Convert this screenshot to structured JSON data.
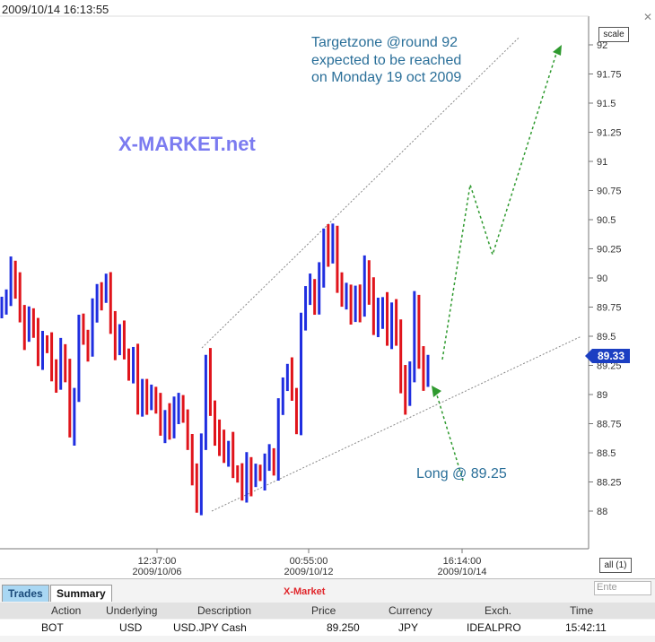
{
  "timestamp": "2009/10/14  16:13:55",
  "scale_label": "scale",
  "close_glyph": "✕",
  "current_price": "89.33",
  "brand": "X-MARKET.net",
  "target_note": "Targetzone @round 92\nexpected to be reached\non Monday 19 oct 2009",
  "long_note": "Long @ 89.25",
  "all_label": "all (1)",
  "colors": {
    "up_bar": "#1f2ee0",
    "down_bar": "#e0141b",
    "projection": "#2f9a2f",
    "channel": "#888888",
    "price_tag": "#1c3fc2"
  },
  "chart_data": {
    "type": "ohlc",
    "title": "",
    "ylim": [
      87.8,
      92.3
    ],
    "y_ticks": [
      "88",
      "88.25",
      "88.5",
      "88.75",
      "89",
      "89.25",
      "89.5",
      "89.75",
      "90",
      "90.25",
      "90.5",
      "90.75",
      "91",
      "91.25",
      "91.5",
      "91.75",
      "92"
    ],
    "x_ticks": [
      {
        "time": "12:37:00",
        "date": "2009/10/06"
      },
      {
        "time": "00:55:00",
        "date": "2009/10/12"
      },
      {
        "time": "16:14:00",
        "date": "2009/10/14"
      }
    ],
    "series": [
      {
        "values": [
          89.75,
          89.85,
          90.1,
          89.95,
          89.7,
          89.5,
          89.65,
          89.55,
          89.3,
          89.45,
          89.4,
          89.25,
          89.1,
          89.35,
          89.2,
          88.7,
          89.0,
          89.6,
          89.5,
          89.4,
          89.75,
          89.9,
          89.85,
          89.95,
          89.6,
          89.4,
          89.55,
          89.35,
          89.2,
          89.3,
          88.9,
          89.05,
          88.95,
          89.0,
          88.9,
          88.7,
          88.8,
          88.75,
          88.85,
          88.9,
          88.8,
          88.6,
          88.3,
          88.1,
          88.6,
          89.3,
          88.9,
          88.7,
          88.6,
          88.5,
          88.55,
          88.35,
          88.3,
          88.2,
          88.4,
          88.25,
          88.35,
          88.3,
          88.4,
          88.45,
          88.35,
          88.9,
          89.1,
          89.2,
          89.0,
          88.7,
          89.6,
          89.85,
          89.95,
          89.8,
          90.05,
          90.35,
          90.2,
          90.4,
          90.0,
          89.8,
          89.9,
          89.7,
          89.85,
          89.75,
          90.1,
          89.9,
          89.6,
          89.7,
          89.75,
          89.5,
          89.7,
          89.55,
          89.15,
          88.95,
          89.2,
          89.75,
          89.3,
          89.15,
          89.25
        ]
      }
    ],
    "channel": {
      "upper": [
        [
          88.9,
          89.4
        ],
        [
          90.5,
          92.06
        ]
      ],
      "lower": [
        [
          88.0
        ],
        [
          89.5
        ]
      ]
    },
    "projection_path": [
      89.3,
      90.8,
      90.2,
      91.95
    ],
    "long_entry_arrow": [
      88.8,
      89.05
    ],
    "annotations": [
      "Targetzone @round 92 expected to be reached on Monday 19 oct 2009",
      "Long @ 89.25"
    ],
    "last_price": 89.33,
    "grid": false
  },
  "panel": {
    "tabs": [
      "Trades",
      "Summary"
    ],
    "title": "X-Market",
    "entry_placeholder": "Ente",
    "columns": [
      "Action",
      "Underlying",
      "Description",
      "Price",
      "Currency",
      "Exch.",
      "Time"
    ],
    "rows": [
      [
        "BOT",
        "USD",
        "USD.JPY Cash",
        "89.250",
        "JPY",
        "IDEALPRO",
        "15:42:11"
      ]
    ]
  }
}
